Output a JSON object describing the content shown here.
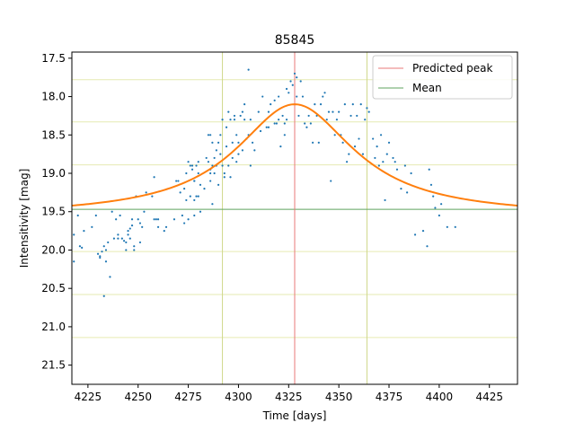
{
  "chart_data": {
    "type": "scatter",
    "title": "85845",
    "xlabel": "Time [days]",
    "ylabel": "Intensitivity [mag]",
    "xlim": [
      4217,
      4439
    ],
    "ylim": [
      21.75,
      17.42
    ],
    "y_inverted": true,
    "xticks": [
      4225,
      4250,
      4275,
      4300,
      4325,
      4350,
      4375,
      4400,
      4425
    ],
    "yticks": [
      17.5,
      18.0,
      18.5,
      19.0,
      19.5,
      20.0,
      20.5,
      21.0,
      21.5
    ],
    "ytick_labels": [
      "17.5",
      "18.0",
      "18.5",
      "19.0",
      "19.5",
      "20.0",
      "20.5",
      "21.0",
      "21.5"
    ],
    "colors": {
      "points": "#1f77b4",
      "fit": "#ff7f0e",
      "peak": "#e8797a",
      "mean": "#5fa35f",
      "band_h": "#e6eab2",
      "band_v": "#cfd88a"
    },
    "reference_lines": {
      "predicted_peak_x": 4328,
      "mean_y": 19.47,
      "vertical_bounds": [
        4292,
        4364
      ],
      "horizontal_bands": [
        17.78,
        18.33,
        18.89,
        20.02,
        20.58,
        21.14
      ]
    },
    "fit": {
      "baseline": 19.56,
      "amplitude": 1.46,
      "center": 4328,
      "width": 36
    },
    "legend": {
      "position": "top-right",
      "entries": [
        {
          "label": "Predicted peak",
          "color": "#e8797a"
        },
        {
          "label": "Mean",
          "color": "#5fa35f"
        }
      ]
    },
    "points": [
      [
        4218,
        19.8
      ],
      [
        4218,
        20.15
      ],
      [
        4220,
        19.55
      ],
      [
        4221,
        19.95
      ],
      [
        4222,
        19.97
      ],
      [
        4223,
        19.75
      ],
      [
        4227,
        19.7
      ],
      [
        4229,
        19.55
      ],
      [
        4230,
        20.05
      ],
      [
        4231,
        20.1
      ],
      [
        4231,
        20.08
      ],
      [
        4232,
        20.02
      ],
      [
        4233,
        19.95
      ],
      [
        4233,
        20.6
      ],
      [
        4234,
        20.0
      ],
      [
        4234,
        20.15
      ],
      [
        4235,
        19.9
      ],
      [
        4236,
        20.35
      ],
      [
        4237,
        19.5
      ],
      [
        4238,
        19.85
      ],
      [
        4239,
        19.6
      ],
      [
        4240,
        19.8
      ],
      [
        4240,
        19.85
      ],
      [
        4241,
        19.55
      ],
      [
        4242,
        19.85
      ],
      [
        4243,
        19.88
      ],
      [
        4244,
        19.9
      ],
      [
        4244,
        20.0
      ],
      [
        4245,
        19.75
      ],
      [
        4245,
        19.8
      ],
      [
        4246,
        19.85
      ],
      [
        4246,
        19.72
      ],
      [
        4247,
        19.68
      ],
      [
        4247,
        19.6
      ],
      [
        4248,
        19.95
      ],
      [
        4248,
        20.0
      ],
      [
        4249,
        19.3
      ],
      [
        4250,
        19.6
      ],
      [
        4251,
        19.65
      ],
      [
        4251,
        19.9
      ],
      [
        4252,
        19.7
      ],
      [
        4253,
        19.5
      ],
      [
        4254,
        19.25
      ],
      [
        4257,
        19.3
      ],
      [
        4258,
        19.05
      ],
      [
        4258,
        19.6
      ],
      [
        4259,
        19.6
      ],
      [
        4260,
        19.6
      ],
      [
        4260,
        19.7
      ],
      [
        4263,
        19.75
      ],
      [
        4264,
        19.7
      ],
      [
        4268,
        19.6
      ],
      [
        4269,
        19.1
      ],
      [
        4270,
        19.1
      ],
      [
        4271,
        19.25
      ],
      [
        4272,
        19.55
      ],
      [
        4273,
        19.2
      ],
      [
        4273,
        19.65
      ],
      [
        4274,
        19.35
      ],
      [
        4274,
        19.0
      ],
      [
        4275,
        18.85
      ],
      [
        4275,
        19.6
      ],
      [
        4276,
        18.9
      ],
      [
        4276,
        19.3
      ],
      [
        4277,
        18.9
      ],
      [
        4277,
        18.95
      ],
      [
        4278,
        19.1
      ],
      [
        4278,
        19.1
      ],
      [
        4278,
        19.35
      ],
      [
        4278,
        19.55
      ],
      [
        4279,
        18.9
      ],
      [
        4279,
        19.3
      ],
      [
        4280,
        19.0
      ],
      [
        4280,
        19.3
      ],
      [
        4280,
        18.85
      ],
      [
        4281,
        19.15
      ],
      [
        4281,
        19.5
      ],
      [
        4283,
        19.2
      ],
      [
        4284,
        18.8
      ],
      [
        4285,
        18.5
      ],
      [
        4285,
        18.85
      ],
      [
        4286,
        18.5
      ],
      [
        4286,
        18.95
      ],
      [
        4286,
        19.0
      ],
      [
        4286,
        19.1
      ],
      [
        4287,
        18.6
      ],
      [
        4287,
        18.9
      ],
      [
        4287,
        19.4
      ],
      [
        4288,
        18.8
      ],
      [
        4288,
        19.0
      ],
      [
        4289,
        18.7
      ],
      [
        4289,
        18.9
      ],
      [
        4290,
        18.6
      ],
      [
        4290,
        19.15
      ],
      [
        4291,
        18.5
      ],
      [
        4291,
        18.75
      ],
      [
        4292,
        18.3
      ],
      [
        4292,
        18.9
      ],
      [
        4293,
        19.05
      ],
      [
        4293,
        19.0
      ],
      [
        4294,
        18.4
      ],
      [
        4294,
        18.65
      ],
      [
        4295,
        18.2
      ],
      [
        4295,
        18.9
      ],
      [
        4296,
        18.3
      ],
      [
        4296,
        19.05
      ],
      [
        4297,
        18.6
      ],
      [
        4297,
        18.8
      ],
      [
        4298,
        18.25
      ],
      [
        4298,
        18.3
      ],
      [
        4299,
        18.5
      ],
      [
        4299,
        18.85
      ],
      [
        4300,
        18.6
      ],
      [
        4300,
        18.75
      ],
      [
        4301,
        18.25
      ],
      [
        4302,
        18.2
      ],
      [
        4302,
        18.7
      ],
      [
        4303,
        18.1
      ],
      [
        4303,
        18.3
      ],
      [
        4304,
        18.55
      ],
      [
        4305,
        17.65
      ],
      [
        4305,
        18.5
      ],
      [
        4306,
        18.3
      ],
      [
        4306,
        18.9
      ],
      [
        4307,
        18.6
      ],
      [
        4308,
        18.7
      ],
      [
        4310,
        18.2
      ],
      [
        4311,
        18.45
      ],
      [
        4312,
        18.0
      ],
      [
        4314,
        18.4
      ],
      [
        4315,
        18.4
      ],
      [
        4315,
        18.2
      ],
      [
        4316,
        18.1
      ],
      [
        4318,
        18.05
      ],
      [
        4318,
        18.35
      ],
      [
        4319,
        18.35
      ],
      [
        4320,
        18.0
      ],
      [
        4320,
        18.3
      ],
      [
        4321,
        18.65
      ],
      [
        4322,
        18.25
      ],
      [
        4323,
        18.35
      ],
      [
        4323,
        18.5
      ],
      [
        4324,
        18.3
      ],
      [
        4324,
        17.9
      ],
      [
        4325,
        17.95
      ],
      [
        4326,
        17.8
      ],
      [
        4327,
        17.85
      ],
      [
        4328,
        17.7
      ],
      [
        4329,
        17.75
      ],
      [
        4329,
        18.0
      ],
      [
        4330,
        18.25
      ],
      [
        4331,
        17.8
      ],
      [
        4332,
        18.0
      ],
      [
        4333,
        18.35
      ],
      [
        4334,
        18.4
      ],
      [
        4335,
        18.25
      ],
      [
        4336,
        18.35
      ],
      [
        4337,
        18.6
      ],
      [
        4338,
        18.1
      ],
      [
        4339,
        18.25
      ],
      [
        4340,
        18.6
      ],
      [
        4341,
        18.1
      ],
      [
        4342,
        18.0
      ],
      [
        4343,
        17.95
      ],
      [
        4344,
        18.3
      ],
      [
        4345,
        18.2
      ],
      [
        4346,
        19.1
      ],
      [
        4347,
        18.2
      ],
      [
        4348,
        18.5
      ],
      [
        4349,
        18.3
      ],
      [
        4350,
        18.2
      ],
      [
        4351,
        18.5
      ],
      [
        4352,
        18.6
      ],
      [
        4353,
        18.1
      ],
      [
        4354,
        18.85
      ],
      [
        4355,
        18.75
      ],
      [
        4356,
        18.25
      ],
      [
        4357,
        18.1
      ],
      [
        4358,
        18.65
      ],
      [
        4359,
        18.25
      ],
      [
        4360,
        18.55
      ],
      [
        4361,
        18.1
      ],
      [
        4362,
        18.75
      ],
      [
        4363,
        18.3
      ],
      [
        4364,
        18.15
      ],
      [
        4365,
        18.2
      ],
      [
        4367,
        18.55
      ],
      [
        4368,
        18.8
      ],
      [
        4369,
        18.65
      ],
      [
        4370,
        18.9
      ],
      [
        4371,
        18.5
      ],
      [
        4372,
        18.85
      ],
      [
        4373,
        19.35
      ],
      [
        4374,
        18.75
      ],
      [
        4375,
        18.6
      ],
      [
        4377,
        18.8
      ],
      [
        4378,
        18.85
      ],
      [
        4379,
        18.95
      ],
      [
        4381,
        19.2
      ],
      [
        4383,
        18.9
      ],
      [
        4384,
        19.25
      ],
      [
        4386,
        19.0
      ],
      [
        4388,
        19.8
      ],
      [
        4392,
        19.75
      ],
      [
        4394,
        19.95
      ],
      [
        4395,
        18.95
      ],
      [
        4396,
        19.15
      ],
      [
        4397,
        19.3
      ],
      [
        4398,
        19.45
      ],
      [
        4400,
        19.55
      ],
      [
        4401,
        19.4
      ],
      [
        4404,
        19.7
      ],
      [
        4408,
        19.7
      ]
    ]
  }
}
